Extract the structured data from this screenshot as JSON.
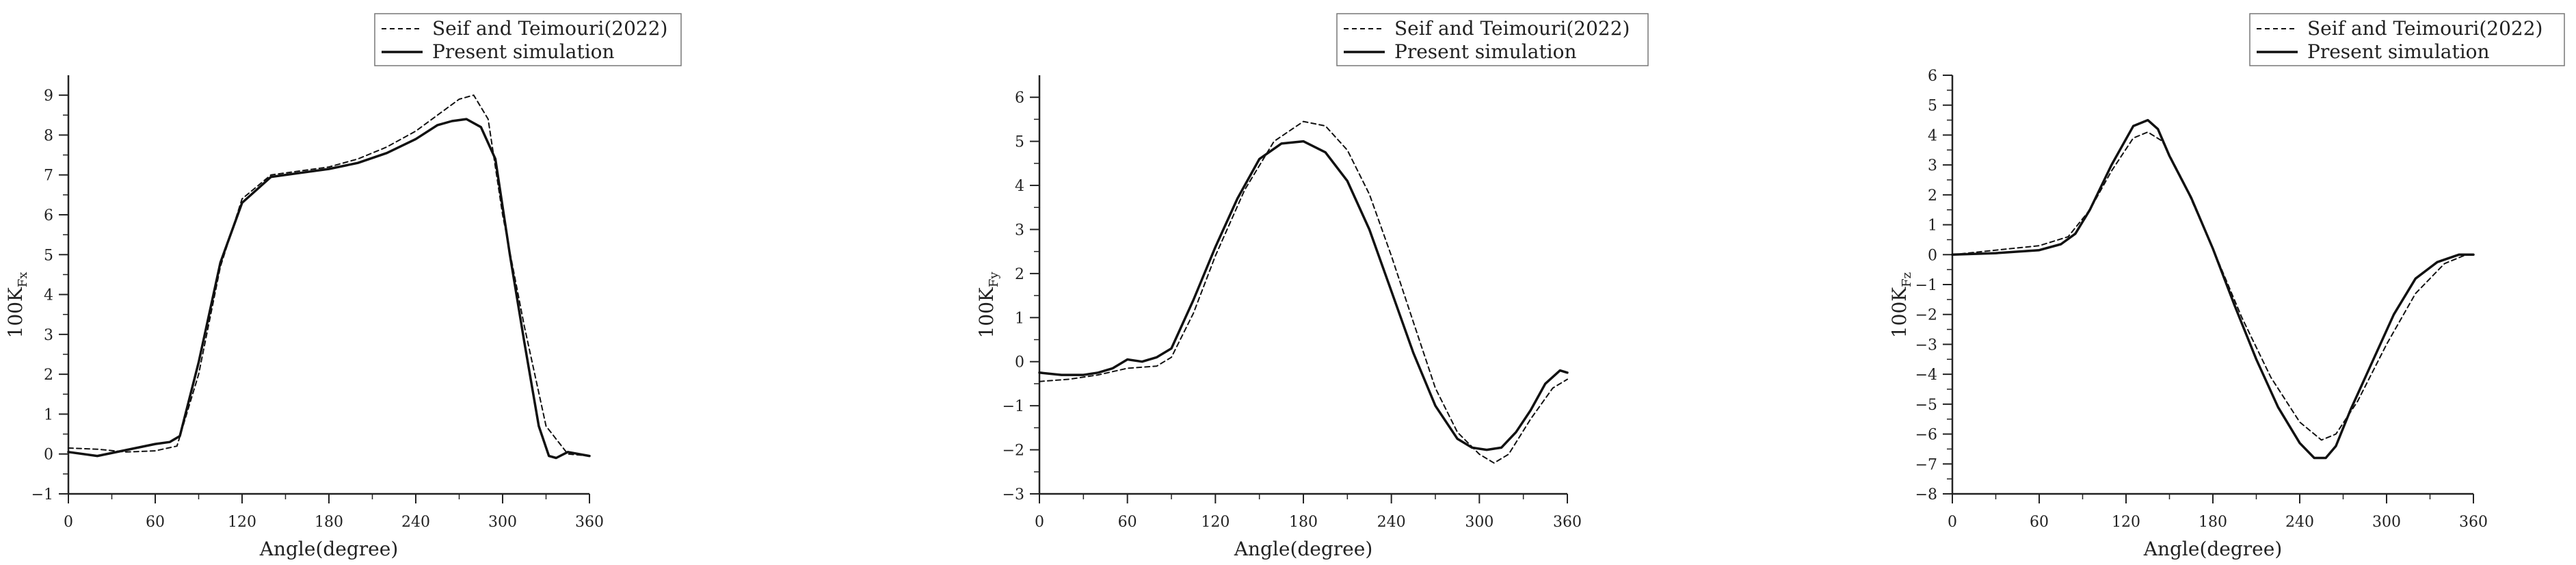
{
  "chart_data": [
    {
      "type": "line",
      "xlabel": "Angle(degree)",
      "ylabel_main": "100K",
      "ylabel_sub": "Fx",
      "xlim": [
        0,
        360
      ],
      "ylim": [
        -1,
        9.5
      ],
      "xticks": [
        0,
        60,
        120,
        180,
        240,
        300,
        360
      ],
      "yticks": [
        -1,
        0,
        1,
        2,
        3,
        4,
        5,
        6,
        7,
        8,
        9
      ],
      "legend_position": "top-right",
      "series": [
        {
          "name": "Seif and Teimouri(2022)",
          "style": "dashed",
          "x": [
            0,
            20,
            40,
            60,
            75,
            90,
            105,
            120,
            140,
            160,
            180,
            200,
            220,
            240,
            255,
            270,
            280,
            290,
            300,
            315,
            330,
            345,
            360
          ],
          "y": [
            0.15,
            0.12,
            0.05,
            0.08,
            0.2,
            2.0,
            4.7,
            6.4,
            7.0,
            7.1,
            7.2,
            7.4,
            7.7,
            8.1,
            8.5,
            8.9,
            9.0,
            8.4,
            6.0,
            3.2,
            0.7,
            0.0,
            -0.05
          ]
        },
        {
          "name": "Present simulation",
          "style": "solid",
          "x": [
            0,
            20,
            40,
            60,
            70,
            77,
            90,
            105,
            120,
            140,
            160,
            180,
            200,
            220,
            240,
            255,
            265,
            275,
            285,
            295,
            305,
            315,
            325,
            332,
            337,
            345,
            360
          ],
          "y": [
            0.05,
            -0.05,
            0.1,
            0.25,
            0.3,
            0.45,
            2.3,
            4.8,
            6.3,
            6.95,
            7.05,
            7.15,
            7.3,
            7.55,
            7.9,
            8.25,
            8.35,
            8.4,
            8.2,
            7.4,
            5.0,
            2.8,
            0.7,
            -0.05,
            -0.1,
            0.05,
            -0.05
          ]
        }
      ]
    },
    {
      "type": "line",
      "xlabel": "Angle(degree)",
      "ylabel_main": "100K",
      "ylabel_sub": "Fy",
      "xlim": [
        0,
        360
      ],
      "ylim": [
        -3,
        6.5
      ],
      "xticks": [
        0,
        60,
        120,
        180,
        240,
        300,
        360
      ],
      "yticks": [
        -3,
        -2,
        -1,
        0,
        1,
        2,
        3,
        4,
        5,
        6
      ],
      "legend_position": "top-right",
      "series": [
        {
          "name": "Seif and Teimouri(2022)",
          "style": "dashed",
          "x": [
            0,
            20,
            40,
            60,
            80,
            90,
            105,
            120,
            140,
            160,
            180,
            195,
            210,
            225,
            240,
            255,
            270,
            285,
            300,
            310,
            320,
            335,
            350,
            360
          ],
          "y": [
            -0.45,
            -0.4,
            -0.3,
            -0.15,
            -0.1,
            0.1,
            1.1,
            2.4,
            3.9,
            5.0,
            5.45,
            5.35,
            4.8,
            3.8,
            2.4,
            0.9,
            -0.6,
            -1.6,
            -2.1,
            -2.3,
            -2.1,
            -1.3,
            -0.6,
            -0.4
          ]
        },
        {
          "name": "Present simulation",
          "style": "solid",
          "x": [
            0,
            15,
            30,
            40,
            50,
            60,
            70,
            80,
            90,
            105,
            120,
            135,
            150,
            165,
            180,
            195,
            210,
            225,
            240,
            255,
            270,
            285,
            295,
            305,
            315,
            325,
            335,
            345,
            355,
            360
          ],
          "y": [
            -0.25,
            -0.3,
            -0.3,
            -0.25,
            -0.15,
            0.05,
            0.0,
            0.1,
            0.3,
            1.4,
            2.6,
            3.7,
            4.6,
            4.95,
            5.0,
            4.75,
            4.1,
            3.0,
            1.6,
            0.2,
            -1.0,
            -1.75,
            -1.95,
            -2.0,
            -1.95,
            -1.6,
            -1.1,
            -0.5,
            -0.2,
            -0.25
          ]
        }
      ]
    },
    {
      "type": "line",
      "xlabel": "Angle(degree)",
      "ylabel_main": "100K",
      "ylabel_sub": "Fz",
      "xlim": [
        0,
        360
      ],
      "ylim": [
        -8,
        6
      ],
      "xticks": [
        0,
        60,
        120,
        180,
        240,
        300,
        360
      ],
      "yticks": [
        -8,
        -7,
        -6,
        -5,
        -4,
        -3,
        -2,
        -1,
        0,
        1,
        2,
        3,
        4,
        5,
        6
      ],
      "legend_position": "top-right",
      "series": [
        {
          "name": "Seif and Teimouri(2022)",
          "style": "dashed",
          "x": [
            0,
            30,
            60,
            80,
            95,
            110,
            125,
            135,
            145,
            160,
            180,
            200,
            220,
            240,
            255,
            265,
            280,
            300,
            320,
            340,
            355,
            360
          ],
          "y": [
            0.0,
            0.15,
            0.3,
            0.6,
            1.5,
            2.8,
            3.9,
            4.1,
            3.8,
            2.4,
            0.2,
            -2.1,
            -4.1,
            -5.6,
            -6.2,
            -6.0,
            -4.9,
            -3.0,
            -1.3,
            -0.3,
            0.0,
            0.0
          ]
        },
        {
          "name": "Present simulation",
          "style": "solid",
          "x": [
            0,
            30,
            60,
            75,
            85,
            95,
            110,
            125,
            135,
            142,
            150,
            165,
            180,
            195,
            210,
            225,
            240,
            250,
            258,
            265,
            275,
            290,
            305,
            320,
            335,
            350,
            360
          ],
          "y": [
            0.0,
            0.05,
            0.15,
            0.35,
            0.7,
            1.5,
            3.0,
            4.3,
            4.5,
            4.2,
            3.3,
            1.9,
            0.2,
            -1.7,
            -3.5,
            -5.1,
            -6.3,
            -6.8,
            -6.8,
            -6.4,
            -5.2,
            -3.6,
            -2.0,
            -0.8,
            -0.25,
            0.0,
            0.0
          ]
        }
      ]
    }
  ]
}
